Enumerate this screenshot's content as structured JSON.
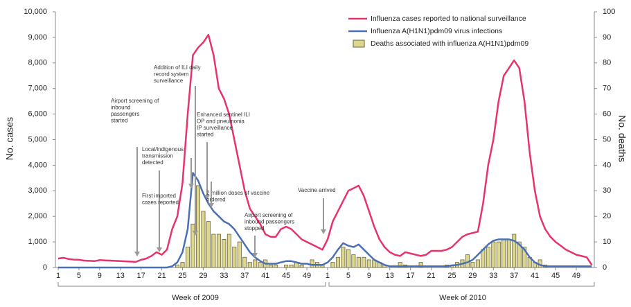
{
  "chart_data": {
    "type": "combo",
    "y_label": "No. cases",
    "y2_label": "No. deaths",
    "x_groups": [
      "Week of 2009",
      "Week of 2010"
    ],
    "categories": [
      "1",
      null,
      null,
      null,
      "5",
      null,
      null,
      null,
      "9",
      null,
      null,
      null,
      "13",
      null,
      null,
      null,
      "17",
      null,
      null,
      null,
      "21",
      null,
      null,
      null,
      "25",
      null,
      null,
      null,
      "29",
      null,
      null,
      null,
      "33",
      null,
      null,
      null,
      "37",
      null,
      null,
      null,
      "41",
      null,
      null,
      null,
      "45",
      null,
      null,
      null,
      "49",
      null,
      null,
      null,
      "1",
      null,
      null,
      null,
      "5",
      null,
      null,
      null,
      "9",
      null,
      null,
      null,
      "13",
      null,
      null,
      null,
      "17",
      null,
      null,
      null,
      "21",
      null,
      null,
      null,
      "25",
      null,
      null,
      null,
      "29",
      null,
      null,
      null,
      "33",
      null,
      null,
      null,
      "37",
      null,
      null,
      null,
      "41",
      null,
      null,
      null,
      "45",
      null,
      null,
      null,
      "49",
      null,
      null,
      null
    ],
    "ylim": [
      0,
      10000
    ],
    "yticks": [
      0,
      {
        "value": 1000,
        "label": "1,000"
      },
      {
        "value": 2000,
        "label": "2,000"
      },
      {
        "value": 3000,
        "label": "3,000"
      },
      {
        "value": 4000,
        "label": "4,000"
      },
      {
        "value": 5000,
        "label": "5,000"
      },
      {
        "value": 6000,
        "label": "6,000"
      },
      {
        "value": 7000,
        "label": "7,000"
      },
      {
        "value": 8000,
        "label": "8,000"
      },
      {
        "value": 9000,
        "label": "9,000"
      },
      {
        "value": 10000,
        "label": "10,000"
      }
    ],
    "y2lim": [
      0,
      100
    ],
    "y2ticks": [
      0,
      10,
      20,
      30,
      40,
      50,
      60,
      70,
      80,
      90,
      100
    ],
    "series": [
      {
        "name": "Deaths associated with influenza A(H1N1)pdm09",
        "type": "bar",
        "axis": "y2",
        "color": "#dcd68e",
        "values": [
          0,
          0,
          0,
          0,
          0,
          0,
          0,
          0,
          0,
          0,
          0,
          0,
          0,
          0,
          0,
          0,
          0,
          0,
          0,
          0,
          0,
          0,
          0,
          1,
          2,
          8,
          17,
          32,
          22,
          18,
          13,
          13,
          11,
          13,
          8,
          10,
          4,
          2,
          3,
          2,
          3,
          1,
          1,
          0,
          1,
          1,
          2,
          1,
          0,
          3,
          2,
          1,
          0,
          2,
          4,
          8,
          7,
          5,
          4,
          4,
          3,
          3,
          2,
          1,
          0,
          0,
          2,
          1,
          0,
          0,
          2,
          0,
          0,
          0,
          0,
          1,
          1,
          2,
          3,
          5,
          2,
          3,
          7,
          8,
          10,
          10,
          11,
          11,
          13,
          10,
          8,
          4,
          2,
          3,
          1,
          0,
          0,
          0,
          0,
          0,
          0,
          0,
          0,
          0
        ]
      },
      {
        "name": "Influenza cases reported to national surveillance",
        "type": "line",
        "color": "#e8336a",
        "values": [
          350,
          380,
          330,
          310,
          300,
          270,
          260,
          250,
          290,
          280,
          270,
          260,
          250,
          240,
          230,
          220,
          300,
          350,
          450,
          600,
          500,
          700,
          1500,
          2000,
          3300,
          6000,
          8300,
          8600,
          8800,
          9100,
          8300,
          7000,
          6600,
          6000,
          5000,
          4000,
          3000,
          2300,
          2000,
          1700,
          1300,
          1200,
          1200,
          1500,
          1600,
          1500,
          1300,
          1100,
          1000,
          900,
          800,
          700,
          1100,
          1800,
          2200,
          2600,
          3000,
          3100,
          3200,
          2800,
          2200,
          1600,
          1100,
          800,
          600,
          500,
          450,
          600,
          550,
          500,
          450,
          500,
          650,
          650,
          650,
          700,
          800,
          1000,
          1200,
          1300,
          1350,
          1400,
          2500,
          4000,
          5000,
          6500,
          7500,
          7800,
          8100,
          7800,
          6500,
          4500,
          3000,
          2000,
          1500,
          1200,
          1000,
          850,
          700,
          600,
          500,
          450,
          400,
          100
        ]
      },
      {
        "name": "Influenza A(H1N1)pdm09 virus infections",
        "type": "line",
        "color": "#4a6fb5",
        "values": [
          0,
          0,
          0,
          0,
          0,
          0,
          0,
          0,
          0,
          0,
          0,
          0,
          0,
          0,
          0,
          0,
          0,
          0,
          0,
          0,
          0,
          0,
          50,
          200,
          600,
          1500,
          3700,
          3400,
          2900,
          2500,
          2200,
          2000,
          1800,
          1700,
          1500,
          1200,
          900,
          600,
          400,
          250,
          150,
          150,
          150,
          200,
          250,
          250,
          200,
          150,
          150,
          100,
          100,
          100,
          200,
          400,
          700,
          950,
          850,
          800,
          900,
          700,
          500,
          300,
          200,
          100,
          50,
          50,
          50,
          50,
          50,
          50,
          50,
          50,
          50,
          50,
          50,
          50,
          80,
          100,
          150,
          200,
          300,
          500,
          700,
          900,
          1050,
          1100,
          1100,
          1100,
          1050,
          900,
          700,
          400,
          200,
          100,
          50,
          50,
          50,
          50,
          50,
          50,
          50,
          50,
          50,
          50
        ]
      }
    ],
    "annotations": [
      {
        "lines": [
          "Airport screening of",
          "inbound",
          "passengers",
          "started"
        ]
      },
      {
        "lines": [
          "Local/indigenous",
          "transmission",
          "detected"
        ]
      },
      {
        "lines": [
          "First imported",
          "cases reported"
        ]
      },
      {
        "lines": [
          "Addition of ILI daily",
          "record system",
          "surveillance"
        ]
      },
      {
        "lines": [
          "Enhanced sentinel ILI",
          "OP and pneumonia",
          "IP surveillance",
          "started"
        ]
      },
      {
        "lines": [
          "2 million doses of vaccine",
          "ordered"
        ]
      },
      {
        "lines": [
          "Airport screening of",
          "inbound passengers",
          "stopped"
        ]
      },
      {
        "lines": [
          "Vaccine  arrived"
        ]
      }
    ]
  }
}
